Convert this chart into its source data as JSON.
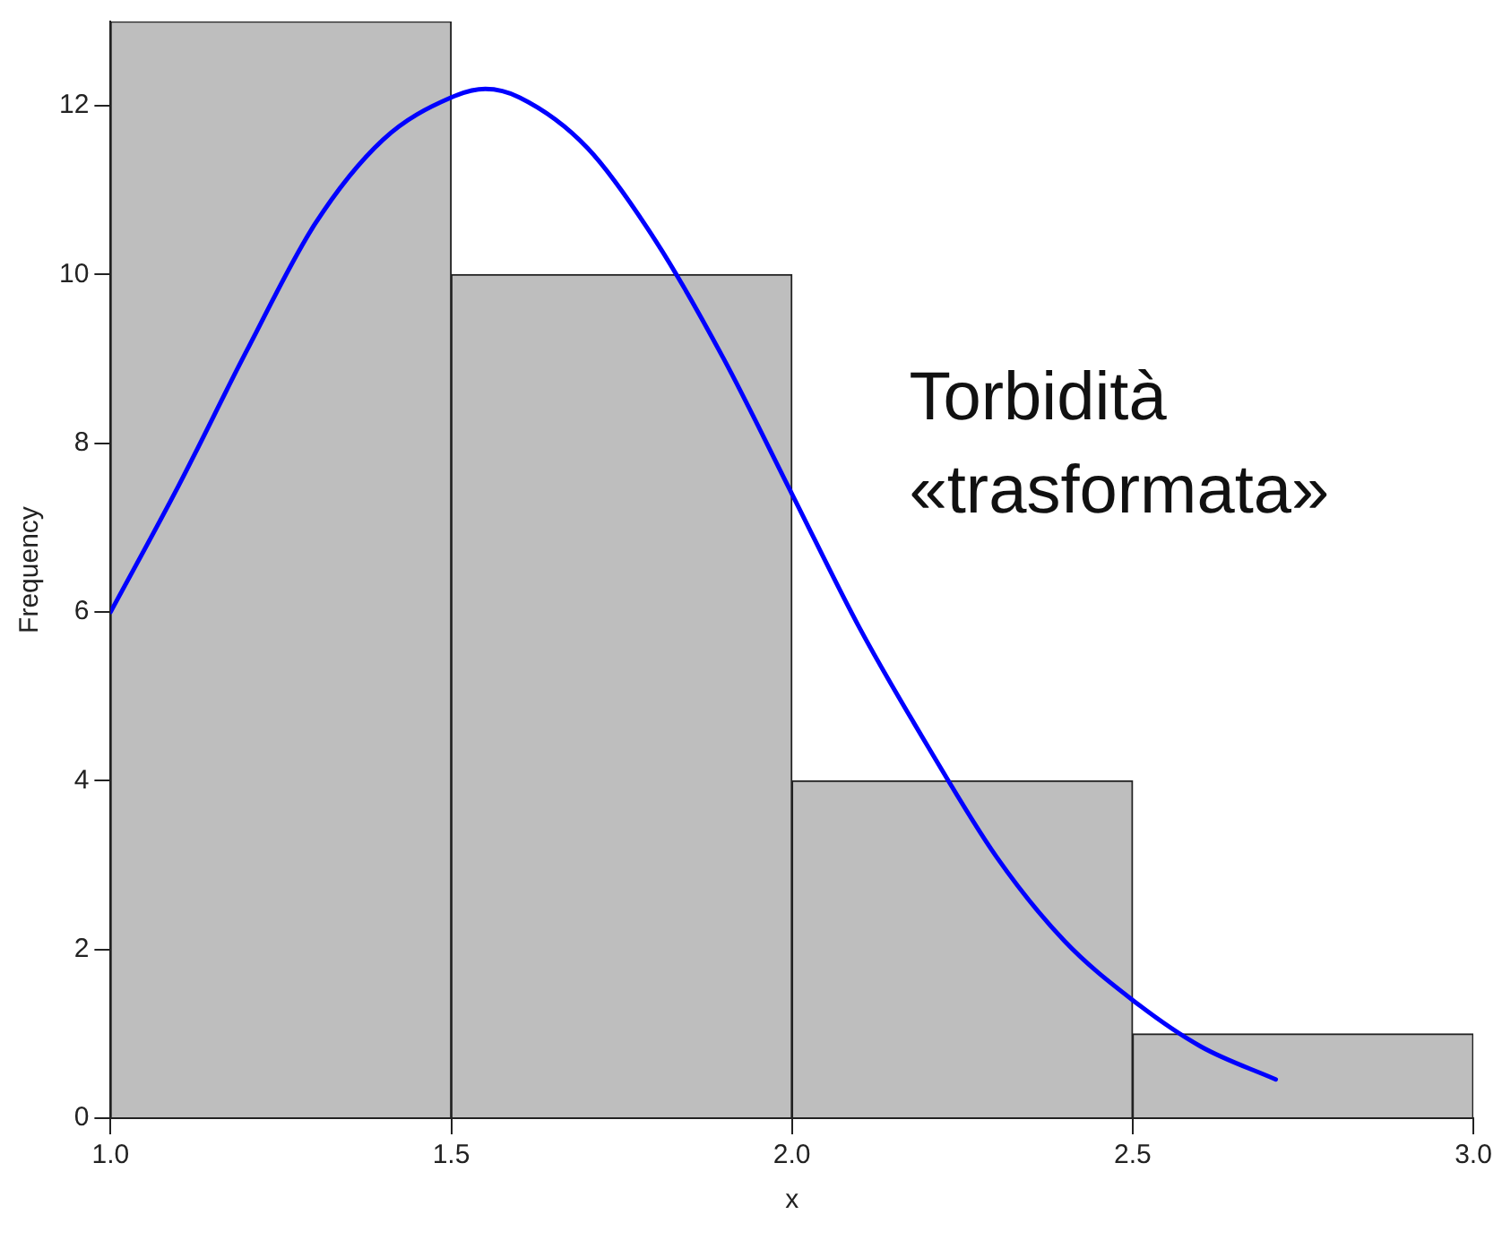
{
  "chart_data": {
    "type": "histogram",
    "xlabel": "x",
    "ylabel": "Frequency",
    "bins": [
      1,
      1.5,
      2,
      2.5,
      3
    ],
    "values": [
      13,
      10,
      4,
      1
    ],
    "color": "#bebebe",
    "xlim": [
      1,
      3
    ],
    "ylim": [
      0,
      13
    ],
    "xticks": [
      {
        "value": 1,
        "label": "1.0"
      },
      1.5,
      {
        "value": 2,
        "label": "2.0"
      },
      2.5,
      {
        "value": 3,
        "label": "3.0"
      }
    ],
    "yticks": [
      0,
      2,
      4,
      6,
      8,
      10,
      12
    ],
    "grid": false,
    "legend": false,
    "marker": "none",
    "series": [
      {
        "type": "line",
        "color": "#0000ff",
        "x": [
          1.0,
          1.1,
          1.2,
          1.3,
          1.4,
          1.5,
          1.55,
          1.6,
          1.7,
          1.8,
          1.9,
          2.0,
          2.1,
          2.2,
          2.3,
          2.4,
          2.5,
          2.6,
          2.71
        ],
        "values": [
          6.0,
          7.5,
          9.1,
          10.6,
          11.6,
          12.1,
          12.2,
          12.1,
          11.5,
          10.4,
          9.0,
          7.4,
          5.8,
          4.4,
          3.1,
          2.1,
          1.4,
          0.85,
          0.46
        ]
      }
    ],
    "annotations": [
      "Torbidità\n«trasformata»"
    ]
  }
}
